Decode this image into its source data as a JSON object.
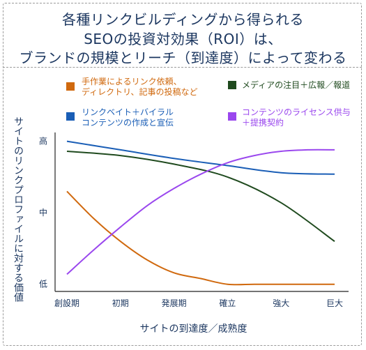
{
  "title_lines": [
    "各種リンクビルディングから得られる",
    "SEOの投資対効果（ROI）は、",
    "ブランドの規模とリーチ（到達度）によって変わる"
  ],
  "chart_data": {
    "type": "line",
    "title": "各種リンクビルディングから得られるSEOの投資対効果（ROI）は、ブランドの規模とリーチ（到達度）によって変わる",
    "xlabel": "サイトの到達度／成熟度",
    "ylabel": "サイトのリンクプロファイルに対する価値",
    "x_categories": [
      "創設期",
      "初期",
      "発展期",
      "確立",
      "強大",
      "巨大"
    ],
    "y_ticks": [
      {
        "label": "高",
        "value": 1.0
      },
      {
        "label": "中",
        "value": 0.5
      },
      {
        "label": "低",
        "value": 0.0
      }
    ],
    "ylim": [
      -0.05,
      1.12
    ],
    "legend_position": "top",
    "series": [
      {
        "name": "手作業によるリンク依頼、ディレクトリ、記事の投稿など",
        "legend_lines": [
          "手作業によるリンク依頼、",
          "ディレクトリ、記事の投稿など"
        ],
        "color": "#d0690e",
        "x": [
          0,
          0.5,
          1,
          1.5,
          2,
          2.5,
          3,
          3.5,
          4,
          4.5,
          5
        ],
        "y": [
          0.65,
          0.46,
          0.3,
          0.17,
          0.08,
          0.04,
          0.0,
          0.0,
          0.0,
          0.0,
          0.0
        ]
      },
      {
        "name": "リンクベイト＋バイラルコンテンツの作成と宣伝",
        "legend_lines": [
          "リンクベイト＋バイラル",
          "コンテンツの作成と宣伝"
        ],
        "color": "#1a5eb6",
        "x": [
          0,
          1,
          2,
          3,
          4,
          5
        ],
        "y": [
          1.0,
          0.94,
          0.88,
          0.83,
          0.78,
          0.77
        ]
      },
      {
        "name": "メディアの注目＋広報／報道",
        "legend_lines": [
          "メディアの注目＋広報／報道"
        ],
        "color": "#1f4a1e",
        "x": [
          0,
          1,
          2,
          3,
          4,
          5
        ],
        "y": [
          0.93,
          0.9,
          0.84,
          0.75,
          0.57,
          0.3
        ]
      },
      {
        "name": "コンテンツのライセンス供与＋提携契約",
        "legend_lines": [
          "コンテンツのライセンス供与",
          "＋提携契約"
        ],
        "color": "#9a47ee",
        "x": [
          0,
          0.5,
          1,
          1.5,
          2,
          2.5,
          3,
          3.5,
          4,
          4.5,
          5
        ],
        "y": [
          0.07,
          0.24,
          0.4,
          0.55,
          0.67,
          0.77,
          0.85,
          0.9,
          0.93,
          0.94,
          0.94
        ]
      }
    ]
  }
}
